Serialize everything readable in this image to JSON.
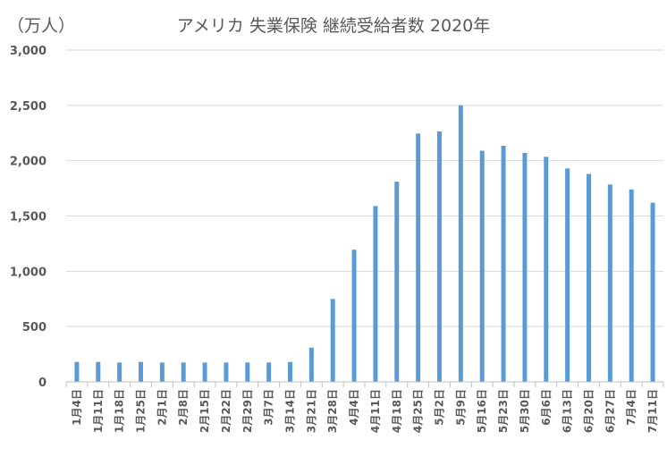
{
  "chart_data": {
    "type": "bar",
    "title": "アメリカ 失業保険 継続受給者数 2020年",
    "unit_label": "（万人）",
    "xlabel": "",
    "ylabel": "",
    "ylim": [
      0,
      3000
    ],
    "y_ticks": [
      0,
      500,
      1000,
      1500,
      2000,
      2500,
      3000
    ],
    "y_tick_labels": [
      "0",
      "500",
      "1,000",
      "1,500",
      "2,000",
      "2,500",
      "3,000"
    ],
    "grid": true,
    "legend": "none",
    "bar_color": "#5B9BD5",
    "categories": [
      "1月4日",
      "1月11日",
      "1月18日",
      "1月25日",
      "2月1日",
      "2月8日",
      "2月15日",
      "2月22日",
      "2月29日",
      "3月7日",
      "3月14日",
      "3月21日",
      "3月28日",
      "4月4日",
      "4月11日",
      "4月18日",
      "4月25日",
      "5月2日",
      "5月9日",
      "5月16日",
      "5月23日",
      "5月30日",
      "6月6日",
      "6月13日",
      "6月20日",
      "6月27日",
      "7月4日",
      "7月11日"
    ],
    "values": [
      180,
      180,
      175,
      180,
      175,
      175,
      175,
      175,
      175,
      175,
      180,
      310,
      750,
      1195,
      1590,
      1810,
      2245,
      2265,
      2500,
      2090,
      2135,
      2070,
      2035,
      1930,
      1880,
      1785,
      1740,
      1620
    ]
  }
}
